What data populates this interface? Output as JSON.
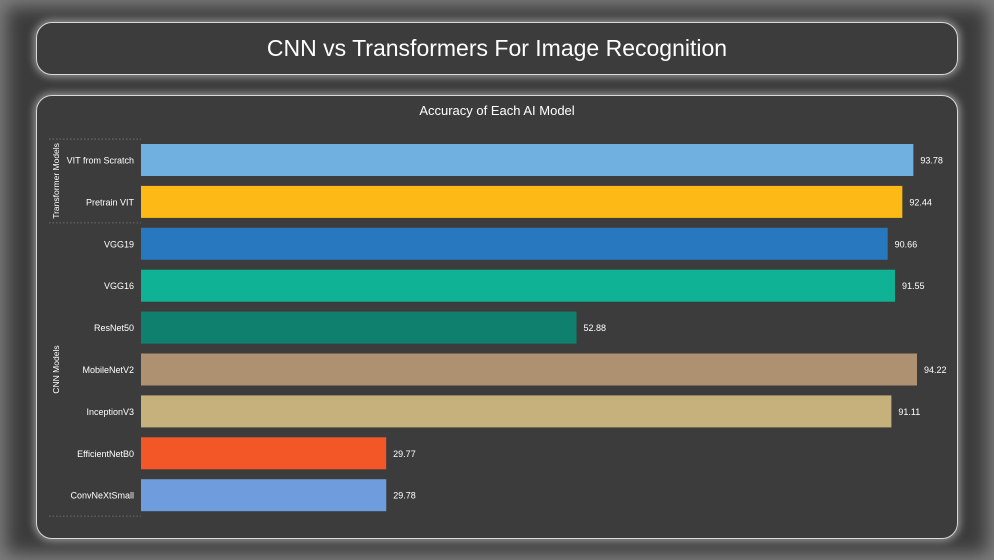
{
  "header": {
    "title": "CNN vs Transformers For Image Recognition"
  },
  "chart_data": {
    "type": "bar",
    "orientation": "horizontal",
    "title": "Accuracy of Each AI Model",
    "xlabel": "",
    "ylabel": "",
    "xlim": [
      0,
      100
    ],
    "grid": false,
    "legend": "none",
    "groups": [
      {
        "name": "Transformer Models",
        "categories": [
          "VIT from Scratch",
          "Pretrain VIT"
        ],
        "values": [
          93.78,
          92.44
        ],
        "colors": [
          "#6fb0e0",
          "#fdb916"
        ]
      },
      {
        "name": "CNN Models",
        "categories": [
          "VGG19",
          "VGG16",
          "ResNet50",
          "MobileNetV2",
          "InceptionV3",
          "EfficientNetB0",
          "ConvNeXtSmall"
        ],
        "values": [
          90.66,
          91.55,
          52.88,
          94.22,
          91.11,
          29.77,
          29.78
        ],
        "colors": [
          "#2878c0",
          "#10b295",
          "#10806e",
          "#ae9170",
          "#c6b17d",
          "#f35728",
          "#6e9cdc"
        ]
      }
    ],
    "value_labels": [
      "93.78",
      "92.44",
      "90.66",
      "91.55",
      "52.88",
      "94.22",
      "91.11",
      "29.77",
      "29.78"
    ]
  },
  "colors": {
    "background": "#3c3c3c",
    "text": "#ffffff",
    "border": "#d9d9d9"
  }
}
